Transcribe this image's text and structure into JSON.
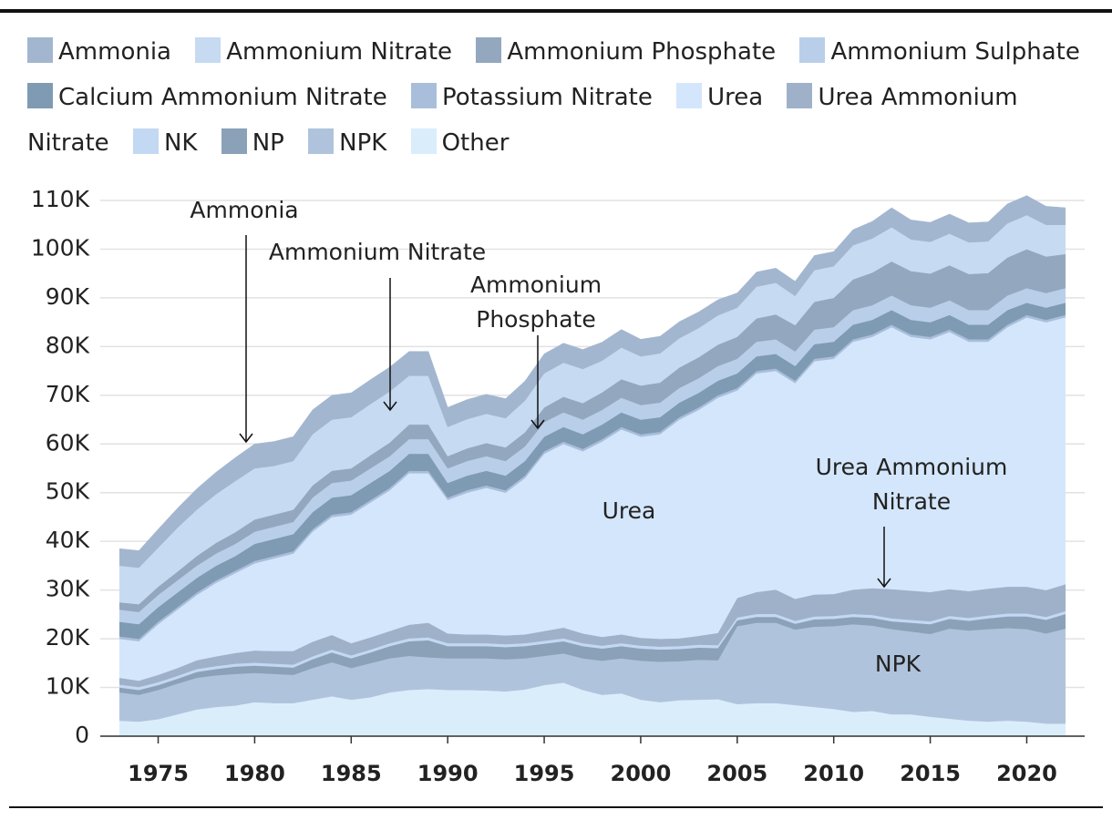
{
  "chart_data": {
    "type": "stacked-area",
    "x": [
      1973,
      1974,
      1975,
      1976,
      1977,
      1978,
      1979,
      1980,
      1981,
      1982,
      1983,
      1984,
      1985,
      1986,
      1987,
      1988,
      1989,
      1990,
      1991,
      1992,
      1993,
      1994,
      1995,
      1996,
      1997,
      1998,
      1999,
      2000,
      2001,
      2002,
      2003,
      2004,
      2005,
      2006,
      2007,
      2008,
      2009,
      2010,
      2011,
      2012,
      2013,
      2014,
      2015,
      2016,
      2017,
      2018,
      2019,
      2020,
      2021,
      2022
    ],
    "xlim": [
      1972,
      2023
    ],
    "xticks": [
      1975,
      1980,
      1985,
      1990,
      1995,
      2000,
      2005,
      2010,
      2015,
      2020
    ],
    "ylim": [
      0,
      110000
    ],
    "yticks": [
      0,
      {
        "value": 10000,
        "label": "10K"
      },
      {
        "value": 20000,
        "label": "20K"
      },
      {
        "value": 30000,
        "label": "30K"
      },
      {
        "value": 40000,
        "label": "40K"
      },
      {
        "value": 50000,
        "label": "50K"
      },
      {
        "value": 60000,
        "label": "60K"
      },
      {
        "value": 70000,
        "label": "70K"
      },
      {
        "value": 80000,
        "label": "80K"
      },
      {
        "value": 90000,
        "label": "90K"
      },
      {
        "value": 100000,
        "label": "100K"
      },
      {
        "value": 110000,
        "label": "110K"
      }
    ],
    "grid": true,
    "legend": "top",
    "series": [
      {
        "name": "Ammonia",
        "color": "#a3b6cf",
        "values": [
          3500,
          3500,
          3800,
          4000,
          4300,
          4500,
          4800,
          5000,
          5000,
          5000,
          5000,
          5000,
          5000,
          5000,
          5000,
          5000,
          5000,
          4000,
          4000,
          4000,
          4000,
          4000,
          4000,
          4000,
          4000,
          3800,
          3700,
          3500,
          3500,
          3400,
          3300,
          3200,
          3000,
          3000,
          3000,
          3000,
          3000,
          3000,
          3200,
          3500,
          4000,
          4000,
          4000,
          4000,
          4000,
          4000,
          4000,
          4000,
          3800,
          3500
        ]
      },
      {
        "name": "Ammonium Nitrate",
        "color": "#c6daf1",
        "values": [
          7500,
          7500,
          8000,
          9000,
          9500,
          10000,
          10500,
          10500,
          10000,
          10000,
          10500,
          10500,
          10500,
          10500,
          10500,
          10000,
          10000,
          6000,
          6000,
          6000,
          6000,
          6500,
          7000,
          7000,
          7000,
          6500,
          6500,
          6000,
          6000,
          6000,
          6000,
          6000,
          6000,
          6500,
          6500,
          6000,
          6500,
          6500,
          7000,
          7000,
          7000,
          6500,
          6500,
          6500,
          6500,
          6500,
          7000,
          7000,
          6500,
          6000
        ]
      },
      {
        "name": "Ammonium Phosphate",
        "color": "#93a7bf",
        "values": [
          1500,
          1600,
          1700,
          1800,
          2000,
          2200,
          2400,
          2500,
          2500,
          2500,
          2500,
          2500,
          2500,
          2700,
          2800,
          3000,
          3000,
          2500,
          2600,
          2700,
          2800,
          2900,
          3000,
          3200,
          3400,
          3600,
          3800,
          4000,
          4100,
          4200,
          4300,
          4400,
          4500,
          4800,
          5100,
          5400,
          5700,
          6000,
          6300,
          6700,
          7000,
          7000,
          7000,
          7200,
          7400,
          7600,
          7800,
          8000,
          7500,
          7000
        ]
      },
      {
        "name": "Ammonium Sulphate",
        "color": "#b9cfe9",
        "values": [
          2500,
          2500,
          2500,
          2500,
          2500,
          2500,
          2500,
          2500,
          2500,
          2500,
          3000,
          3000,
          3000,
          3000,
          3000,
          3000,
          3000,
          3000,
          3000,
          3000,
          3000,
          3000,
          3000,
          3000,
          3000,
          3000,
          3000,
          3000,
          3000,
          3000,
          3000,
          3000,
          3000,
          3000,
          3000,
          3000,
          3000,
          3000,
          3000,
          3000,
          3000,
          3000,
          3000,
          3000,
          3000,
          3000,
          3000,
          3000,
          3000,
          3000
        ]
      },
      {
        "name": "Calcium Ammonium Nitrate",
        "color": "#7f9bb3",
        "values": [
          3000,
          3000,
          3000,
          3000,
          3000,
          3000,
          3000,
          3500,
          3500,
          3500,
          3500,
          3500,
          3500,
          3500,
          3500,
          3500,
          3500,
          3000,
          3000,
          3000,
          3000,
          3000,
          3000,
          3000,
          3000,
          3000,
          3000,
          3000,
          3000,
          3000,
          3000,
          3000,
          3000,
          3000,
          3000,
          3000,
          3000,
          3000,
          3000,
          3000,
          3000,
          3000,
          3000,
          3000,
          3000,
          3000,
          3000,
          2500,
          2500,
          2500
        ]
      },
      {
        "name": "Potassium Nitrate",
        "color": "#a9bedb",
        "values": [
          500,
          500,
          500,
          500,
          500,
          500,
          500,
          500,
          500,
          500,
          500,
          500,
          500,
          500,
          500,
          500,
          500,
          500,
          500,
          500,
          500,
          500,
          500,
          500,
          500,
          500,
          500,
          500,
          500,
          500,
          500,
          500,
          500,
          500,
          500,
          500,
          500,
          500,
          500,
          500,
          500,
          500,
          500,
          500,
          500,
          500,
          500,
          500,
          500,
          500
        ]
      },
      {
        "name": "Urea",
        "color": "#d4e6fb",
        "values": [
          8000,
          8100,
          10400,
          12000,
          13400,
          15100,
          16400,
          17900,
          19000,
          20000,
          22600,
          24200,
          26400,
          27700,
          28900,
          31100,
          30700,
          27400,
          29100,
          30100,
          29300,
          32100,
          36400,
          37700,
          37400,
          40100,
          42100,
          41300,
          42000,
          44900,
          46400,
          48300,
          42600,
          44900,
          44900,
          44300,
          47900,
          48300,
          50900,
          51600,
          53800,
          52100,
          51900,
          52800,
          51200,
          50700,
          53300,
          55300,
          55000,
          54800
        ]
      },
      {
        "name": "Urea Ammonium Nitrate",
        "color": "#9fb1c9",
        "values": [
          1400,
          1300,
          1500,
          1600,
          1800,
          2000,
          2200,
          2500,
          2600,
          2800,
          3000,
          3000,
          2500,
          2500,
          2500,
          2800,
          3000,
          2000,
          1800,
          1800,
          1800,
          1800,
          2000,
          2200,
          2000,
          1800,
          1800,
          1600,
          1600,
          1600,
          1800,
          2500,
          4000,
          4500,
          5000,
          4500,
          4500,
          4500,
          5000,
          5500,
          6000,
          6000,
          6000,
          5500,
          5500,
          5500,
          5500,
          5500,
          5500,
          5500
        ]
      },
      {
        "name": "NK",
        "color": "#c3d8f2",
        "values": [
          600,
          600,
          600,
          600,
          600,
          600,
          600,
          600,
          600,
          600,
          600,
          600,
          600,
          600,
          600,
          600,
          600,
          600,
          600,
          600,
          600,
          600,
          600,
          600,
          600,
          600,
          600,
          600,
          600,
          600,
          600,
          600,
          600,
          600,
          600,
          600,
          600,
          600,
          600,
          600,
          600,
          600,
          600,
          600,
          600,
          600,
          600,
          600,
          600,
          600
        ]
      },
      {
        "name": "NP",
        "color": "#8aa1b8",
        "values": [
          1000,
          1000,
          1000,
          1000,
          1200,
          1300,
          1500,
          1500,
          1500,
          1500,
          1800,
          2000,
          2000,
          2200,
          2500,
          3000,
          3500,
          2500,
          2500,
          2500,
          2500,
          2500,
          2500,
          2500,
          2500,
          2500,
          2500,
          2500,
          2500,
          2500,
          2500,
          2500,
          1200,
          1200,
          1200,
          1200,
          1500,
          1500,
          1500,
          1600,
          1600,
          1800,
          2000,
          2000,
          2000,
          2200,
          2400,
          2600,
          2800,
          3000
        ]
      },
      {
        "name": "NPK",
        "color": "#b0c3dc",
        "values": [
          5800,
          5500,
          6000,
          6300,
          6500,
          6500,
          6500,
          6000,
          6000,
          5800,
          6500,
          7000,
          6500,
          7000,
          7000,
          7000,
          6500,
          6500,
          6500,
          6600,
          6600,
          6400,
          6000,
          6000,
          6500,
          7000,
          7200,
          8000,
          8300,
          8000,
          8200,
          8000,
          16000,
          16500,
          16500,
          15500,
          16500,
          17000,
          18000,
          17500,
          17500,
          17000,
          17000,
          18500,
          18500,
          19000,
          19000,
          19000,
          18500,
          19500
        ]
      },
      {
        "name": "Other",
        "color": "#daedfb",
        "values": [
          3200,
          3000,
          3500,
          4500,
          5500,
          6000,
          6300,
          7000,
          6800,
          6800,
          7500,
          8200,
          7500,
          8000,
          9000,
          9500,
          9700,
          9500,
          9500,
          9400,
          9200,
          9600,
          10500,
          11000,
          9500,
          8500,
          8800,
          7500,
          7000,
          7400,
          7500,
          7600,
          6600,
          6800,
          6800,
          6400,
          6000,
          5600,
          5000,
          5200,
          4500,
          4500,
          4000,
          3600,
          3200,
          3000,
          3200,
          3000,
          2600,
          2600
        ]
      }
    ],
    "annotations": [
      {
        "lines": [
          "Ammonia"
        ]
      },
      {
        "lines": [
          "Ammonium Nitrate"
        ]
      },
      {
        "lines": [
          "Ammonium",
          "Phosphate"
        ]
      },
      {
        "lines": [
          "Urea"
        ]
      },
      {
        "lines": [
          "Urea Ammonium",
          "Nitrate"
        ]
      },
      {
        "lines": [
          "NPK"
        ]
      }
    ]
  }
}
